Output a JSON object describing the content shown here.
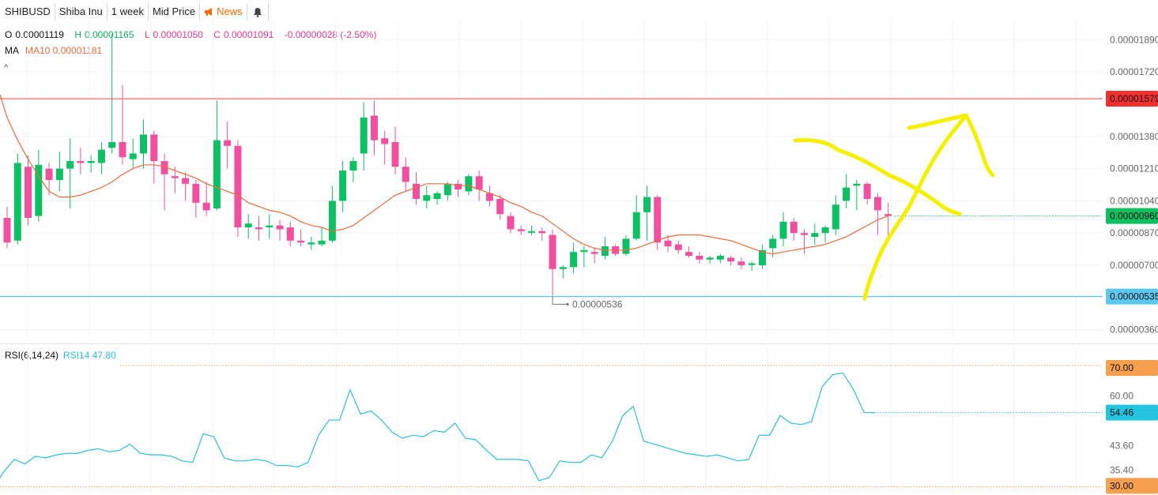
{
  "toolbar": {
    "symbol": "SHIBUSD",
    "name": "Shiba Inu",
    "interval": "1 week",
    "price_type": "Mid Price",
    "news": "News",
    "news_icon": "megaphone-icon",
    "bell_icon": "bell-icon"
  },
  "legend": {
    "o_label": "O",
    "o_value": "0.00001119",
    "h_label": "H",
    "h_value": "0.00001165",
    "l_label": "L",
    "l_value": "0.00001050",
    "c_label": "C",
    "c_value": "0.00001091",
    "change": "-0.00000028 (-2.50%)",
    "ma_label": "MA",
    "ma_value": "MA10 0.00001181",
    "rsi_label": "RSI(6,14,24)",
    "rsi_value": "RSI14 47.80"
  },
  "colors": {
    "up": "#0cc063",
    "down": "#f0509e",
    "ma": "#ef6b3c",
    "rsi": "#2cc0da",
    "resistance": "#f05a5a",
    "support": "#5cc8f0",
    "annotation": "#f5f000"
  },
  "chart_data": [
    {
      "type": "candlestick",
      "title": "SHIBUSD",
      "ylim": [
        3e-06,
        2e-05
      ],
      "y_ticks": [
        "0.00001890",
        "0.00001720",
        "0.00001380",
        "0.00001210",
        "0.00001040",
        "0.00000870",
        "0.00000700",
        "0.00000360"
      ],
      "y_tick_values": [
        1.89e-05,
        1.72e-05,
        1.38e-05,
        1.21e-05,
        1.04e-05,
        8.7e-06,
        7e-06,
        3.6e-06
      ],
      "resistance": {
        "value": 1.579e-05,
        "label": "0.00001579"
      },
      "support": {
        "value": 5.35e-06,
        "label": "0.00000535"
      },
      "current": {
        "value": 9.6e-06,
        "label": "0.00000960"
      },
      "low_marker": {
        "value": 5.36e-06,
        "label": "0.00000536"
      },
      "candles": [
        [
          9.5e-06,
          1.01e-05,
          7.9e-06,
          8.2e-06
        ],
        [
          8.3e-06,
          1.29e-05,
          8.1e-06,
          1.24e-05
        ],
        [
          1.22e-05,
          1.28e-05,
          9.1e-06,
          9.5e-06
        ],
        [
          9.6e-06,
          1.31e-05,
          9.3e-06,
          1.23e-05
        ],
        [
          1.21e-05,
          1.24e-05,
          1.07e-05,
          1.15e-05
        ],
        [
          1.15e-05,
          1.3e-05,
          1.09e-05,
          1.21e-05
        ],
        [
          1.21e-05,
          1.37e-05,
          1e-05,
          1.25e-05
        ],
        [
          1.25e-05,
          1.32e-05,
          1.18e-05,
          1.24e-05
        ],
        [
          1.24e-05,
          1.28e-05,
          1.19e-05,
          1.25e-05
        ],
        [
          1.24e-05,
          1.35e-05,
          1.18e-05,
          1.31e-05
        ],
        [
          1.32e-05,
          1.92e-05,
          1.29e-05,
          1.35e-05
        ],
        [
          1.35e-05,
          1.65e-05,
          1.23e-05,
          1.27e-05
        ],
        [
          1.26e-05,
          1.37e-05,
          1.21e-05,
          1.29e-05
        ],
        [
          1.29e-05,
          1.47e-05,
          1.21e-05,
          1.39e-05
        ],
        [
          1.39e-05,
          1.41e-05,
          1.13e-05,
          1.25e-05
        ],
        [
          1.25e-05,
          1.29e-05,
          9.9e-06,
          1.18e-05
        ],
        [
          1.17e-05,
          1.22e-05,
          1.08e-05,
          1.16e-05
        ],
        [
          1.16e-05,
          1.19e-05,
          1.04e-05,
          1.13e-05
        ],
        [
          1.13e-05,
          1.15e-05,
          9.5e-06,
          1.03e-05
        ],
        [
          1.03e-05,
          1.14e-05,
          9.6e-06,
          9.9e-06
        ],
        [
          1e-05,
          1.57e-05,
          9.9e-06,
          1.36e-05
        ],
        [
          1.36e-05,
          1.46e-05,
          1.21e-05,
          1.33e-05
        ],
        [
          1.33e-05,
          1.36e-05,
          8.5e-06,
          9e-06
        ],
        [
          9e-06,
          9.7e-06,
          8.4e-06,
          9.2e-06
        ],
        [
          9e-06,
          9.6e-06,
          8.3e-06,
          8.9e-06
        ],
        [
          9e-06,
          9.7e-06,
          8.4e-06,
          9.1e-06
        ],
        [
          9.1e-06,
          9.4e-06,
          8.3e-06,
          8.9e-06
        ],
        [
          9e-06,
          9.3e-06,
          8e-06,
          8.3e-06
        ],
        [
          8.3e-06,
          8.9e-06,
          8e-06,
          8.2e-06
        ],
        [
          8.1e-06,
          8.5e-06,
          7.8e-06,
          8.2e-06
        ],
        [
          8.1e-06,
          9e-06,
          8e-06,
          8.3e-06
        ],
        [
          8.3e-06,
          1.12e-05,
          8.2e-06,
          1.04e-05
        ],
        [
          1.04e-05,
          1.25e-05,
          9.8e-06,
          1.2e-05
        ],
        [
          1.2e-05,
          1.27e-05,
          1.14e-05,
          1.25e-05
        ],
        [
          1.29e-05,
          1.56e-05,
          1.2e-05,
          1.48e-05
        ],
        [
          1.49e-05,
          1.57e-05,
          1.28e-05,
          1.36e-05
        ],
        [
          1.37e-05,
          1.41e-05,
          1.23e-05,
          1.34e-05
        ],
        [
          1.35e-05,
          1.43e-05,
          1.18e-05,
          1.22e-05
        ],
        [
          1.22e-05,
          1.27e-05,
          1.09e-05,
          1.14e-05
        ],
        [
          1.13e-05,
          1.19e-05,
          1.02e-05,
          1.05e-05
        ],
        [
          1.04e-05,
          1.12e-05,
          1e-05,
          1.07e-05
        ],
        [
          1.05e-05,
          1.09e-05,
          1.02e-05,
          1.08e-05
        ],
        [
          1.07e-05,
          1.14e-05,
          1.04e-05,
          1.13e-05
        ],
        [
          1.13e-05,
          1.15e-05,
          1.06e-05,
          1.1e-05
        ],
        [
          1.09e-05,
          1.18e-05,
          1.07e-05,
          1.17e-05
        ],
        [
          1.17e-05,
          1.2e-05,
          1.04e-05,
          1.1e-05
        ],
        [
          1.08e-05,
          1.12e-05,
          1.01e-05,
          1.04e-05
        ],
        [
          1.05e-05,
          1.07e-05,
          9.4e-06,
          9.7e-06
        ],
        [
          9.6e-06,
          9.8e-06,
          8.7e-06,
          8.9e-06
        ],
        [
          8.9e-06,
          9.1e-06,
          8.6e-06,
          8.8e-06
        ],
        [
          8.8e-06,
          9.1e-06,
          8.6e-06,
          8.8e-06
        ],
        [
          8.8e-06,
          9e-06,
          8.3e-06,
          8.7e-06
        ],
        [
          8.6e-06,
          8.9e-06,
          5.4e-06,
          6.8e-06
        ],
        [
          6.8e-06,
          7e-06,
          6.3e-06,
          6.9e-06
        ],
        [
          6.9e-06,
          8.2e-06,
          6.6e-06,
          7.7e-06
        ],
        [
          7.7e-06,
          8e-06,
          6.9e-06,
          7.8e-06
        ],
        [
          7.7e-06,
          7.9e-06,
          7.1e-06,
          7.6e-06
        ],
        [
          7.5e-06,
          8.5e-06,
          7.3e-06,
          8e-06
        ],
        [
          8e-06,
          8.1e-06,
          7.5e-06,
          7.6e-06
        ],
        [
          7.6e-06,
          8.6e-06,
          7.5e-06,
          8.4e-06
        ],
        [
          8.4e-06,
          1.07e-05,
          8.3e-06,
          9.8e-06
        ],
        [
          9.8e-06,
          1.12e-05,
          8.3e-06,
          1.06e-05
        ],
        [
          1.06e-05,
          1.07e-05,
          7.8e-06,
          8.2e-06
        ],
        [
          8.3e-06,
          8.6e-06,
          7.7e-06,
          8e-06
        ],
        [
          8.1e-06,
          8.3e-06,
          7.6e-06,
          7.8e-06
        ],
        [
          7.7e-06,
          8e-06,
          7.4e-06,
          7.5e-06
        ],
        [
          7.5e-06,
          7.7e-06,
          7.1e-06,
          7.3e-06
        ],
        [
          7.3e-06,
          7.5e-06,
          7.1e-06,
          7.4e-06
        ],
        [
          7.3e-06,
          7.6e-06,
          7.1e-06,
          7.5e-06
        ],
        [
          7.4e-06,
          7.5e-06,
          7e-06,
          7.2e-06
        ],
        [
          7.2e-06,
          7.4e-06,
          6.8e-06,
          7e-06
        ],
        [
          7.1e-06,
          7.2e-06,
          6.7e-06,
          7.1e-06
        ],
        [
          7e-06,
          8.1e-06,
          6.8e-06,
          7.8e-06
        ],
        [
          7.9e-06,
          8.6e-06,
          7.4e-06,
          8.4e-06
        ],
        [
          8.4e-06,
          9.8e-06,
          8e-06,
          9.3e-06
        ],
        [
          9.3e-06,
          9.5e-06,
          8.3e-06,
          8.7e-06
        ],
        [
          8.7e-06,
          8.9e-06,
          7.6e-06,
          8.6e-06
        ],
        [
          8.5e-06,
          9.2e-06,
          8.1e-06,
          8.7e-06
        ],
        [
          8.7e-06,
          9.1e-06,
          8.2e-06,
          9e-06
        ],
        [
          8.9e-06,
          1.07e-05,
          8.6e-06,
          1.02e-05
        ],
        [
          1.04e-05,
          1.18e-05,
          1e-05,
          1.11e-05
        ],
        [
          1.12e-05,
          1.15e-05,
          9.9e-06,
          1.13e-05
        ],
        [
          1.13e-05,
          1.14e-05,
          1.02e-05,
          1.05e-05
        ],
        [
          1.06e-05,
          1.08e-05,
          8.6e-06,
          9.9e-06
        ],
        [
          9.7e-06,
          1.03e-05,
          8.5e-06,
          9.6e-06
        ]
      ],
      "ma10": [
        1.48e-05,
        1.36e-05,
        1.26e-05,
        1.17e-05,
        1.09e-05,
        1.06e-05,
        1.06e-05,
        1.07e-05,
        1.09e-05,
        1.11e-05,
        1.14e-05,
        1.18e-05,
        1.21e-05,
        1.23e-05,
        1.23e-05,
        1.22e-05,
        1.2e-05,
        1.18e-05,
        1.16e-05,
        1.13e-05,
        1.11e-05,
        1.09e-05,
        1.07e-05,
        1.03e-05,
        1.01e-05,
        9.9e-06,
        9.8e-06,
        9.6e-06,
        9.3e-06,
        9.1e-06,
        9e-06,
        8.8e-06,
        8.9e-06,
        9.1e-06,
        9.5e-06,
        9.9e-06,
        1.03e-05,
        1.07e-05,
        1.09e-05,
        1.11e-05,
        1.13e-05,
        1.13e-05,
        1.13e-05,
        1.12e-05,
        1.12e-05,
        1.1e-05,
        1.08e-05,
        1.06e-05,
        1.03e-05,
        1.01e-05,
        9.8e-06,
        9.6e-06,
        9.2e-06,
        8.8e-06,
        8.4e-06,
        8.1e-06,
        7.9e-06,
        7.8e-06,
        7.8e-06,
        7.8e-06,
        7.9e-06,
        8.1e-06,
        8.3e-06,
        8.5e-06,
        8.6e-06,
        8.6e-06,
        8.6e-06,
        8.5e-06,
        8.4e-06,
        8.3e-06,
        8.1e-06,
        7.9e-06,
        7.7e-06,
        7.6e-06,
        7.7e-06,
        7.8e-06,
        7.9e-06,
        8e-06,
        8.1e-06,
        8.3e-06,
        8.5e-06,
        8.8e-06,
        9.1e-06,
        9.4e-06,
        9.6e-06
      ]
    },
    {
      "type": "line",
      "title": "RSI(6,14,24)",
      "ylim": [
        27.5,
        76
      ],
      "y_ticks": [
        "60.00",
        "43.60",
        "35.40"
      ],
      "y_tick_values": [
        60.0,
        43.6,
        35.4
      ],
      "overbought": {
        "value": 70.0,
        "label": "70.00"
      },
      "oversold": {
        "value": 30.0,
        "label": "30.00"
      },
      "current": {
        "value": 54.46,
        "label": "54.46"
      },
      "series": [
        {
          "name": "RSI14",
          "values": [
            35,
            39,
            37.5,
            40,
            39.5,
            40.5,
            41,
            41,
            42,
            42.5,
            41.5,
            42,
            44,
            41,
            40.5,
            40.5,
            40,
            38.5,
            38,
            47.5,
            46.5,
            39.5,
            38.5,
            38.5,
            39,
            38.5,
            37,
            37,
            36.5,
            38,
            47,
            52,
            52,
            62,
            54,
            55,
            52,
            48,
            46,
            47,
            46.5,
            48.5,
            48,
            51,
            46,
            45.5,
            42,
            39,
            39,
            39,
            38.5,
            32,
            33,
            38.5,
            38,
            38,
            40.5,
            39.5,
            45,
            53.5,
            56.5,
            45,
            44,
            43,
            42,
            41,
            40.5,
            40,
            40.5,
            39.5,
            38.5,
            39,
            47,
            47,
            53.5,
            51,
            50.5,
            51.5,
            63,
            67,
            67.5,
            62,
            54.5,
            54.46
          ]
        }
      ]
    }
  ]
}
